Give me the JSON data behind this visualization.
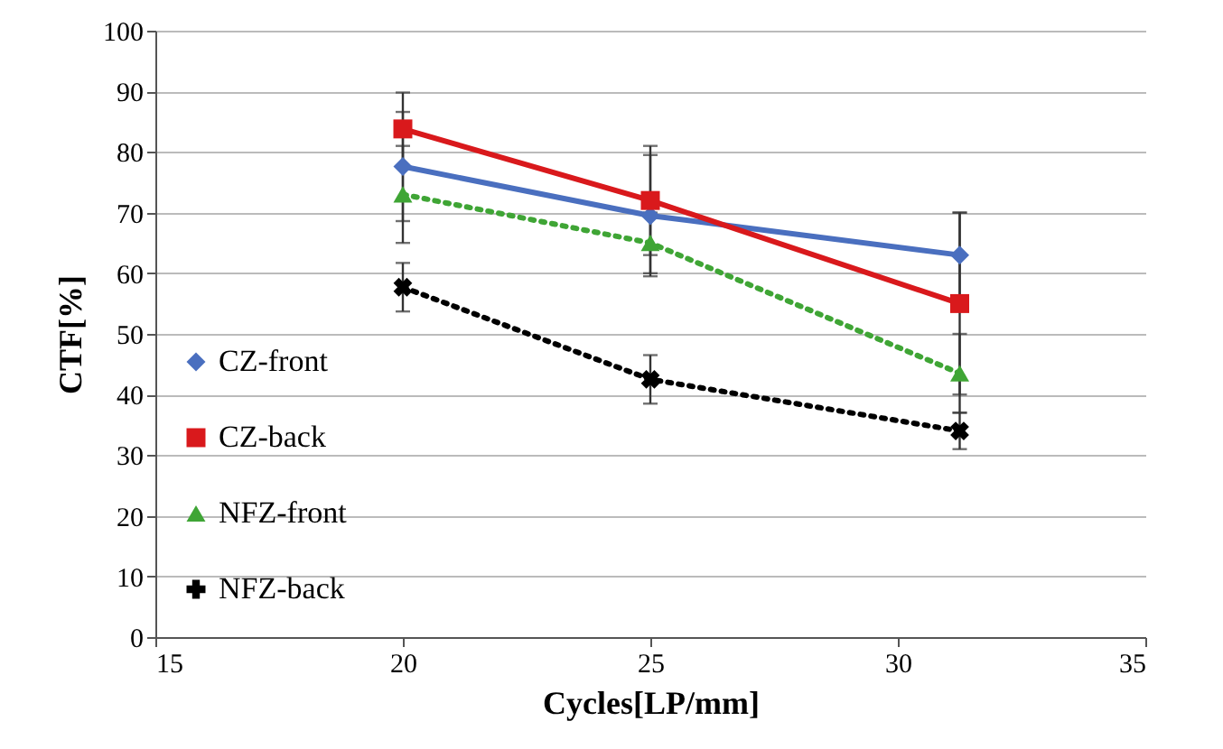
{
  "chart_data": {
    "type": "line",
    "xlabel": "Cycles[LP/mm]",
    "ylabel": "CTF[%]",
    "x": [
      20,
      25,
      31.25
    ],
    "series": [
      {
        "name": "CZ-front",
        "color": "#4a6fbf",
        "values": [
          77.6,
          69.5,
          63
        ],
        "errors": [
          9,
          10,
          7
        ],
        "marker": "diamond",
        "line_style": "solid"
      },
      {
        "name": "CZ-back",
        "color": "#d9191c",
        "values": [
          83.8,
          72,
          55
        ],
        "errors": [
          6,
          9,
          15
        ],
        "marker": "square",
        "line_style": "solid"
      },
      {
        "name": "NFZ-front",
        "color": "#3fa535",
        "values": [
          73,
          65,
          43.5
        ],
        "errors": [
          8,
          5,
          6.5
        ],
        "marker": "triangle",
        "line_style": "dotted"
      },
      {
        "name": "NFZ-back",
        "color": "#000000",
        "values": [
          57.7,
          42.5,
          34
        ],
        "errors": [
          4,
          4,
          3
        ],
        "marker": "cross",
        "line_style": "dotted"
      }
    ],
    "xlim": [
      15,
      35
    ],
    "xticks": [
      15,
      20,
      25,
      30,
      35
    ],
    "ylim": [
      0,
      100
    ],
    "yticks": [
      0,
      10,
      20,
      30,
      40,
      50,
      60,
      70,
      80,
      90,
      100
    ],
    "grid": "y",
    "legend": "left"
  }
}
